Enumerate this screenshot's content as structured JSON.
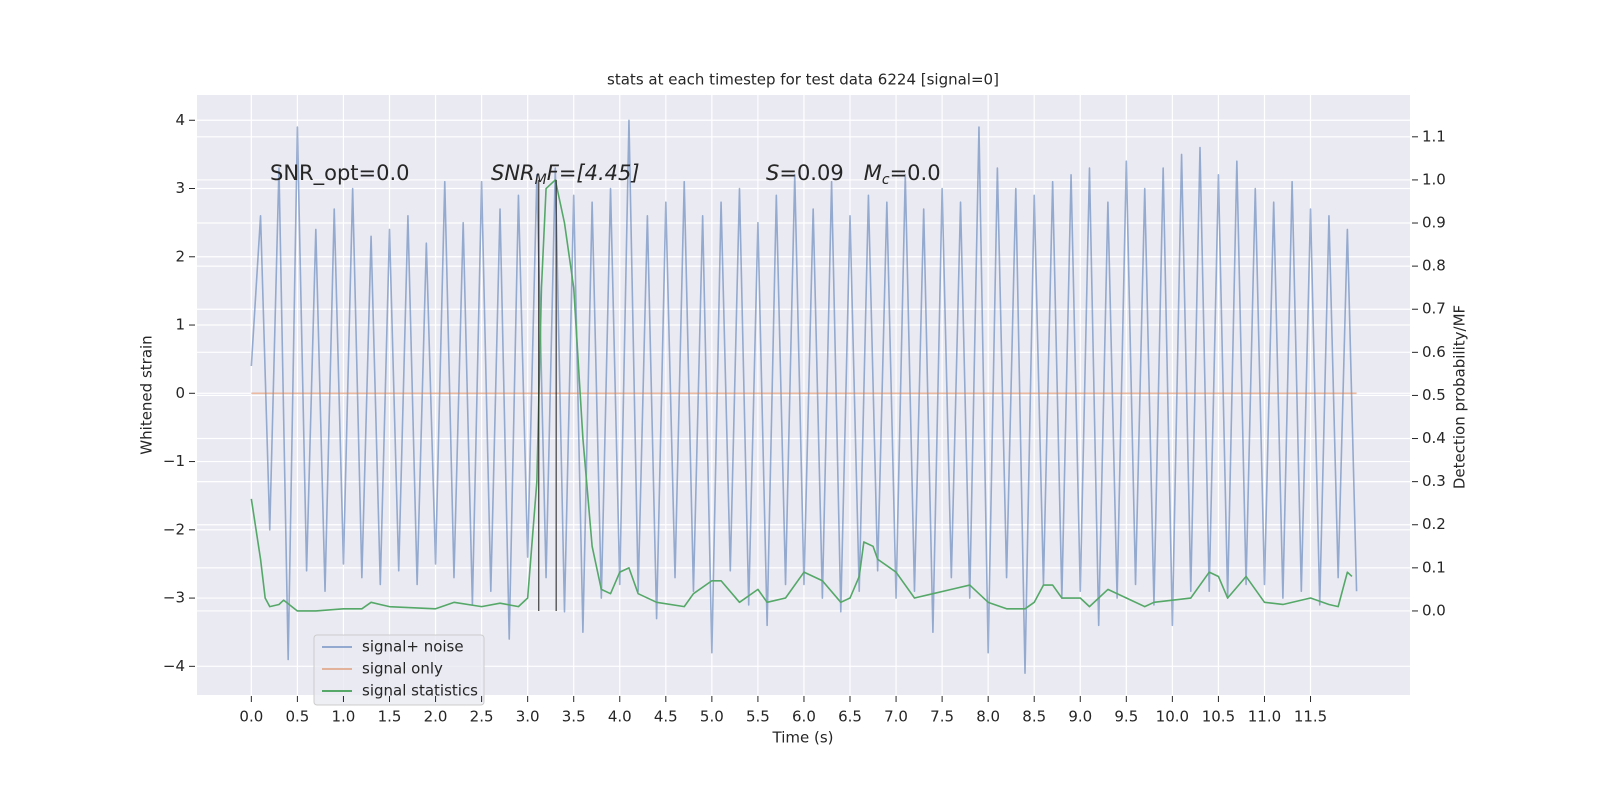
{
  "chart_data": {
    "type": "line",
    "title": "stats at each timestep for test data 6224 [signal=0]",
    "xlabel": "Time (s)",
    "ylabel": "Whitened strain",
    "y2label": "Detection probability/MF",
    "annotations": [
      [
        "SNR_opt=0.0"
      ],
      [
        "SNR",
        "M",
        "F=[4.45]"
      ],
      [
        "S",
        "=0.09   ",
        "M",
        "c",
        "=0.0"
      ]
    ],
    "xlim": [
      -0.59,
      12.58
    ],
    "ylim": [
      -4.42,
      4.37
    ],
    "y2lim": [
      -0.195,
      1.197
    ],
    "xticks": [
      {
        "value": 0,
        "label": "0.0"
      },
      0.5,
      {
        "value": 1,
        "label": "1.0"
      },
      1.5,
      {
        "value": 2,
        "label": "2.0"
      },
      2.5,
      {
        "value": 3,
        "label": "3.0"
      },
      3.5,
      {
        "value": 4,
        "label": "4.0"
      },
      4.5,
      {
        "value": 5,
        "label": "5.0"
      },
      5.5,
      {
        "value": 6,
        "label": "6.0"
      },
      6.5,
      {
        "value": 7,
        "label": "7.0"
      },
      7.5,
      {
        "value": 8,
        "label": "8.0"
      },
      8.5,
      {
        "value": 9,
        "label": "9.0"
      },
      9.5,
      {
        "value": 10,
        "label": "10.0"
      },
      10.5,
      {
        "value": 11,
        "label": "11.0"
      },
      11.5
    ],
    "yticks": [
      {
        "value": -4,
        "label": "−4"
      },
      {
        "value": -3,
        "label": "−3"
      },
      {
        "value": -2,
        "label": "−2"
      },
      {
        "value": -1,
        "label": "−1"
      },
      0,
      1,
      2,
      3,
      4
    ],
    "y2ticks": [
      {
        "value": 0,
        "label": "0.0"
      },
      0.1,
      0.2,
      0.3,
      0.4,
      0.5,
      0.6,
      0.7,
      0.8,
      0.9,
      {
        "value": 1,
        "label": "1.0"
      },
      1.1
    ],
    "grid": true,
    "legend": "lower left",
    "series": [
      {
        "name": "signal+ noise",
        "color": "#4c72b0",
        "alpha": 0.55,
        "axis": "y",
        "x": [
          0.0,
          0.1,
          0.2,
          0.3,
          0.4,
          0.5,
          0.6,
          0.7,
          0.8,
          0.9,
          1.0,
          1.1,
          1.2,
          1.3,
          1.4,
          1.5,
          1.6,
          1.7,
          1.8,
          1.9,
          2.0,
          2.1,
          2.2,
          2.3,
          2.4,
          2.5,
          2.6,
          2.7,
          2.8,
          2.9,
          3.0,
          3.1,
          3.2,
          3.3,
          3.4,
          3.5,
          3.6,
          3.7,
          3.8,
          3.9,
          4.0,
          4.1,
          4.2,
          4.3,
          4.4,
          4.5,
          4.6,
          4.7,
          4.8,
          4.9,
          5.0,
          5.1,
          5.2,
          5.3,
          5.4,
          5.5,
          5.6,
          5.7,
          5.8,
          5.9,
          6.0,
          6.1,
          6.2,
          6.3,
          6.4,
          6.5,
          6.6,
          6.7,
          6.8,
          6.9,
          7.0,
          7.1,
          7.2,
          7.3,
          7.4,
          7.5,
          7.6,
          7.7,
          7.8,
          7.9,
          8.0,
          8.1,
          8.2,
          8.3,
          8.4,
          8.5,
          8.6,
          8.7,
          8.8,
          8.9,
          9.0,
          9.1,
          9.2,
          9.3,
          9.4,
          9.5,
          9.6,
          9.7,
          9.8,
          9.9,
          10.0,
          10.1,
          10.2,
          10.3,
          10.4,
          10.5,
          10.6,
          10.7,
          10.8,
          10.9,
          11.0,
          11.1,
          11.2,
          11.3,
          11.4,
          11.5,
          11.6,
          11.7,
          11.8,
          11.9,
          12.0
        ],
        "values": [
          0.4,
          2.6,
          -2.0,
          3.3,
          -3.9,
          3.9,
          -2.6,
          2.4,
          -2.9,
          2.7,
          -2.5,
          3.0,
          -2.7,
          2.3,
          -2.8,
          2.4,
          -2.6,
          2.6,
          -2.8,
          2.2,
          -2.5,
          3.1,
          -2.7,
          2.5,
          -3.1,
          3.1,
          -2.9,
          2.7,
          -3.6,
          2.9,
          -2.4,
          3.2,
          -2.7,
          3.3,
          -3.2,
          2.9,
          -3.5,
          2.8,
          -3.0,
          3.0,
          -2.8,
          4.0,
          -2.9,
          2.6,
          -3.3,
          2.8,
          -2.7,
          3.1,
          -2.9,
          2.6,
          -3.8,
          2.8,
          -2.6,
          3.0,
          -3.1,
          2.5,
          -3.4,
          2.9,
          -2.8,
          3.2,
          -2.8,
          2.7,
          -3.0,
          3.1,
          -3.2,
          2.6,
          -2.9,
          2.9,
          -2.6,
          2.8,
          -3.0,
          3.2,
          -2.9,
          2.7,
          -3.5,
          3.0,
          -2.7,
          2.8,
          -3.0,
          3.9,
          -3.8,
          3.3,
          -2.7,
          3.0,
          -4.1,
          2.9,
          -2.8,
          3.1,
          -3.0,
          3.2,
          -2.9,
          3.3,
          -3.4,
          2.8,
          -3.0,
          3.4,
          -2.8,
          3.0,
          -3.1,
          3.3,
          -3.4,
          3.5,
          -2.9,
          3.6,
          -2.9,
          3.2,
          -3.0,
          3.4,
          -2.8,
          3.0,
          -2.8,
          2.8,
          -3.0,
          3.1,
          -2.9,
          2.7,
          -3.1,
          2.6,
          -2.7,
          2.4,
          -2.9
        ]
      },
      {
        "name": "signal only",
        "color": "#dd8452",
        "alpha": 0.55,
        "axis": "y",
        "x": [
          0.0,
          12.0
        ],
        "values": [
          0,
          0
        ]
      },
      {
        "name": "signal statistics",
        "color": "#55a868",
        "alpha": 1,
        "axis": "y2",
        "x": [
          0.0,
          0.1,
          0.15,
          0.2,
          0.3,
          0.35,
          0.5,
          0.7,
          1.0,
          1.2,
          1.3,
          1.5,
          2.0,
          2.2,
          2.5,
          2.7,
          2.9,
          3.0,
          3.1,
          3.15,
          3.2,
          3.3,
          3.4,
          3.5,
          3.6,
          3.7,
          3.8,
          3.9,
          4.0,
          4.1,
          4.2,
          4.4,
          4.7,
          4.8,
          5.0,
          5.1,
          5.3,
          5.5,
          5.6,
          5.8,
          6.0,
          6.2,
          6.4,
          6.5,
          6.6,
          6.65,
          6.75,
          6.8,
          7.0,
          7.2,
          7.4,
          7.6,
          7.8,
          8.0,
          8.2,
          8.4,
          8.5,
          8.6,
          8.7,
          8.8,
          9.0,
          9.1,
          9.3,
          9.5,
          9.7,
          9.8,
          10.0,
          10.2,
          10.4,
          10.5,
          10.6,
          10.8,
          11.0,
          11.2,
          11.5,
          11.7,
          11.8,
          11.9,
          11.95
        ],
        "values": [
          0.26,
          0.12,
          0.03,
          0.01,
          0.015,
          0.025,
          0.0,
          0.0,
          0.005,
          0.005,
          0.02,
          0.01,
          0.005,
          0.02,
          0.01,
          0.018,
          0.01,
          0.03,
          0.3,
          0.75,
          0.98,
          1.0,
          0.9,
          0.75,
          0.4,
          0.15,
          0.05,
          0.04,
          0.09,
          0.1,
          0.04,
          0.02,
          0.01,
          0.04,
          0.07,
          0.07,
          0.02,
          0.05,
          0.02,
          0.03,
          0.09,
          0.07,
          0.02,
          0.03,
          0.08,
          0.16,
          0.15,
          0.12,
          0.09,
          0.03,
          0.04,
          0.05,
          0.06,
          0.02,
          0.005,
          0.005,
          0.02,
          0.06,
          0.06,
          0.03,
          0.03,
          0.01,
          0.05,
          0.03,
          0.01,
          0.02,
          0.025,
          0.03,
          0.09,
          0.08,
          0.03,
          0.08,
          0.02,
          0.015,
          0.03,
          0.015,
          0.01,
          0.09,
          0.08
        ]
      }
    ],
    "vlines": {
      "x": [
        3.12,
        3.31
      ],
      "ymin": 0,
      "ymax": 1,
      "axis": "y2",
      "color": "#222222"
    }
  }
}
